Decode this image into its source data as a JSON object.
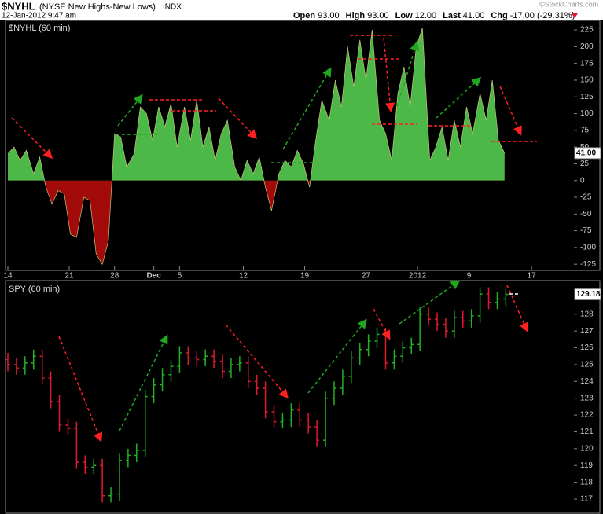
{
  "header": {
    "symbol": "$NYHL",
    "description": "(NYSE New Highs-New Lows)",
    "exchange": "INDX",
    "datetime": "12-Jan-2012 9:47 am",
    "credit": "©StockCharts.com",
    "quote": [
      {
        "label": "Open",
        "value": "93.00"
      },
      {
        "label": "High",
        "value": "93.00"
      },
      {
        "label": "Low",
        "value": "12.00"
      },
      {
        "label": "Last",
        "value": "41.00"
      },
      {
        "label": "Chg",
        "value": "-17.00 (-29.31%)"
      }
    ]
  },
  "chart_data": [
    {
      "type": "area",
      "title": "$NYHL (60 min)",
      "positive_color": "#4cb848",
      "negative_color": "#a30a0a",
      "xlim": [
        0,
        46
      ],
      "ylim": [
        -133,
        238
      ],
      "xticks": [
        {
          "value": 0,
          "label": "14"
        },
        {
          "value": 5,
          "label": "21"
        },
        {
          "value": 8.7,
          "label": "28"
        },
        {
          "value": 11.9,
          "label": "Dec"
        },
        {
          "value": 14,
          "label": "5"
        },
        {
          "value": 19.2,
          "label": "12"
        },
        {
          "value": 24.2,
          "label": "19"
        },
        {
          "value": 29.2,
          "label": "27"
        },
        {
          "value": 33.4,
          "label": "2012"
        },
        {
          "value": 37.6,
          "label": "9"
        },
        {
          "value": 42.7,
          "label": "17"
        }
      ],
      "yticks": [
        225,
        200,
        175,
        150,
        125,
        100,
        75,
        50,
        25,
        0,
        -25,
        -50,
        -75,
        -100,
        -125
      ],
      "last": {
        "value": 41,
        "label": "41.00"
      },
      "x": [
        0,
        0.5,
        1,
        1.5,
        2.1,
        2.6,
        3.1,
        3.6,
        4.1,
        4.6,
        5.1,
        5.6,
        6.2,
        6.7,
        7.2,
        7.7,
        8.2,
        8.7,
        9.2,
        9.7,
        10.3,
        10.8,
        11.3,
        11.8,
        12.3,
        12.8,
        13.3,
        13.8,
        14.4,
        14.9,
        15.4,
        15.9,
        16.4,
        16.9,
        17.4,
        17.9,
        18.5,
        19,
        19.5,
        20,
        20.5,
        21,
        21.5,
        22.1,
        22.6,
        23.1,
        23.6,
        24.1,
        24.6,
        25.1,
        25.6,
        26.2,
        26.7,
        27.2,
        27.7,
        28.2,
        28.7,
        29.2,
        29.7,
        30.3,
        30.8,
        31.3,
        31.8,
        32.3,
        32.8,
        33.3,
        33.8,
        34.4,
        34.9,
        35.4,
        35.9,
        36.4,
        36.9,
        37.4,
        37.9,
        38.5,
        39,
        39.5,
        40,
        40.5
      ],
      "values": [
        40,
        50,
        30,
        45,
        10,
        35,
        -10,
        -35,
        -15,
        -20,
        -80,
        -85,
        -25,
        -30,
        -110,
        -125,
        -90,
        70,
        65,
        20,
        40,
        110,
        100,
        60,
        110,
        80,
        115,
        50,
        110,
        60,
        120,
        50,
        80,
        30,
        70,
        90,
        20,
        0,
        30,
        10,
        35,
        -10,
        -45,
        10,
        30,
        20,
        45,
        25,
        -10,
        60,
        120,
        90,
        150,
        110,
        200,
        140,
        210,
        150,
        225,
        90,
        70,
        30,
        130,
        170,
        110,
        200,
        228,
        30,
        50,
        80,
        30,
        90,
        50,
        110,
        70,
        130,
        90,
        150,
        60,
        41
      ]
    },
    {
      "type": "ohlc",
      "title": "SPY (60 min)",
      "up_color": "#23b023",
      "down_color": "#e0182d",
      "xlim": [
        0,
        46
      ],
      "ylim": [
        116.3,
        130
      ],
      "yticks": [
        128,
        127,
        126,
        125,
        124,
        123,
        122,
        121,
        120,
        119,
        118,
        117
      ],
      "last": {
        "value": 129.18,
        "label": "129.18"
      },
      "x": [
        0,
        0.7,
        1.4,
        2.1,
        2.8,
        3.5,
        4.2,
        4.9,
        5.6,
        6.3,
        7,
        7.7,
        8.4,
        9.1,
        9.8,
        10.5,
        11.2,
        11.9,
        12.6,
        13.3,
        14,
        14.7,
        15.4,
        16.1,
        16.8,
        17.5,
        18.2,
        18.9,
        19.6,
        20.3,
        21,
        21.7,
        22.4,
        23.1,
        23.8,
        24.5,
        25.2,
        25.9,
        26.6,
        27.3,
        28,
        28.7,
        29.4,
        30.1,
        30.8,
        31.5,
        32.2,
        32.9,
        33.6,
        34.3,
        35,
        35.7,
        36.4,
        37.1,
        37.8,
        38.5,
        39.2,
        39.9,
        40.6
      ],
      "open": [
        125.3,
        125.0,
        124.8,
        125.1,
        125.5,
        124.2,
        122.8,
        121.4,
        121.2,
        119.2,
        118.9,
        119.0,
        117.2,
        117.3,
        119.3,
        119.6,
        119.9,
        123.1,
        123.8,
        124.4,
        124.9,
        125.7,
        125.4,
        125.3,
        125.5,
        125.2,
        124.6,
        125.0,
        125.1,
        124.0,
        123.6,
        122.2,
        121.6,
        121.7,
        122.3,
        121.7,
        121.3,
        120.5,
        123.0,
        123.6,
        124.3,
        125.4,
        125.9,
        126.4,
        126.8,
        125.1,
        125.5,
        126.0,
        126.2,
        128.0,
        127.7,
        127.4,
        127.0,
        127.8,
        127.6,
        127.9,
        129.2,
        128.7,
        128.9
      ],
      "high": [
        125.7,
        125.4,
        125.5,
        125.9,
        125.9,
        124.6,
        123.2,
        121.8,
        121.6,
        119.6,
        119.4,
        119.4,
        117.7,
        119.7,
        120.0,
        120.3,
        123.5,
        124.2,
        124.8,
        125.3,
        126.1,
        126.1,
        125.8,
        125.9,
        125.9,
        125.6,
        125.4,
        125.5,
        125.5,
        124.4,
        124.0,
        122.6,
        122.1,
        122.7,
        122.7,
        122.1,
        121.7,
        123.4,
        124.0,
        124.7,
        125.8,
        126.3,
        126.8,
        127.2,
        127.2,
        125.9,
        126.4,
        126.6,
        128.4,
        128.4,
        128.1,
        127.8,
        128.2,
        128.2,
        128.3,
        129.6,
        129.6,
        129.3,
        129.5
      ],
      "low": [
        124.6,
        124.4,
        124.4,
        124.7,
        123.8,
        122.4,
        121.0,
        120.8,
        118.8,
        118.5,
        118.5,
        116.8,
        116.8,
        116.9,
        118.9,
        119.2,
        119.5,
        122.7,
        123.4,
        124.0,
        124.5,
        125.0,
        124.9,
        124.9,
        124.8,
        124.2,
        124.2,
        124.6,
        123.6,
        123.2,
        121.8,
        121.2,
        121.2,
        121.3,
        121.3,
        120.9,
        120.1,
        120.1,
        122.6,
        123.2,
        123.9,
        125.0,
        125.5,
        126.0,
        124.7,
        124.7,
        125.1,
        125.6,
        125.8,
        127.3,
        127.0,
        126.6,
        126.6,
        127.2,
        127.2,
        127.5,
        128.3,
        128.3,
        128.5
      ],
      "close": [
        125.0,
        124.8,
        125.1,
        125.5,
        124.2,
        122.8,
        121.4,
        121.2,
        119.2,
        118.9,
        119.0,
        117.2,
        117.3,
        119.3,
        119.6,
        119.9,
        123.1,
        123.8,
        124.4,
        124.9,
        125.7,
        125.4,
        125.3,
        125.5,
        125.2,
        124.6,
        125.0,
        125.1,
        124.0,
        123.6,
        122.2,
        121.6,
        121.7,
        122.3,
        121.7,
        121.3,
        120.5,
        123.0,
        123.6,
        124.3,
        125.4,
        125.9,
        126.4,
        126.8,
        125.1,
        125.5,
        126.0,
        126.2,
        128.0,
        127.7,
        127.4,
        127.0,
        127.8,
        127.6,
        127.9,
        129.2,
        128.7,
        128.9,
        129.18
      ]
    }
  ]
}
